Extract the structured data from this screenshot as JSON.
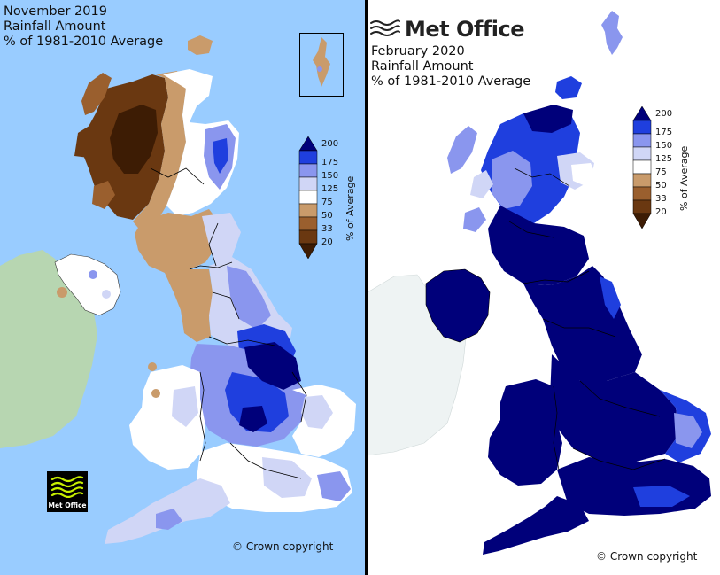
{
  "left_map": {
    "title_lines": [
      "November 2019",
      "Rainfall Amount",
      "% of 1981-2010 Average"
    ],
    "legend_ticks": [
      "200",
      "175",
      "150",
      "125",
      "75",
      "50",
      "33",
      "20"
    ],
    "legend_axis_label": "% of Average",
    "copyright": "© Crown copyright",
    "badge_text": "Met Office",
    "colors": {
      "sea": "#99ccff",
      "ireland": "#b7d6b1",
      "border": "#000000"
    }
  },
  "right_map": {
    "brand": "Met Office",
    "title_lines": [
      "February 2020",
      "Rainfall Amount",
      "% of 1981-2010 Average"
    ],
    "legend_ticks": [
      "200",
      "175",
      "150",
      "125",
      "75",
      "50",
      "33",
      "20"
    ],
    "legend_axis_label": "% of Average",
    "copyright": "© Crown copyright",
    "colors": {
      "sea": "#ffffff",
      "ireland": "#f0f4f4",
      "border": "#000000"
    }
  },
  "legend_colors": [
    "#00007a",
    "#1f3fde",
    "#8a96ee",
    "#d0d6f6",
    "#ffffff",
    "#c99b6b",
    "#9a5f2e",
    "#6a3811",
    "#3d1c04"
  ]
}
